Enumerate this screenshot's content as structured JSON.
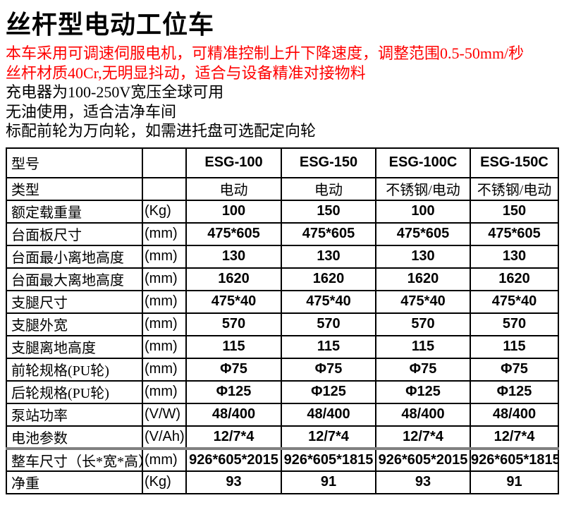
{
  "page": {
    "title": "丝杆型电动工位车",
    "highlight_color": "#ff0000",
    "text_color": "#000000",
    "highlight_lines": [
      "本车采用可调速伺服电机，可精准控制上升下降速度，调整范围0.5-50mm/秒",
      "丝杆材质40Cr,无明显抖动，适合与设备精准对接物料"
    ],
    "info_lines": [
      "充电器为100-250V宽压全球可用",
      "无油使用，适合洁净车间",
      "标配前轮为万向轮，如需进托盘可选配定向轮"
    ]
  },
  "spec_table": {
    "model_names": [
      "ESG-100",
      "ESG-150",
      "ESG-100C",
      "ESG-150C"
    ],
    "rows": [
      {
        "label": "型号",
        "unit": "",
        "values": [
          "ESG-100",
          "ESG-150",
          "ESG-100C",
          "ESG-150C"
        ],
        "is_header": true
      },
      {
        "label": "类型",
        "unit": "",
        "values": [
          "电动",
          "电动",
          "不锈钢/电动",
          "不锈钢/电动"
        ],
        "cjk": true
      },
      {
        "label": "额定载重量",
        "unit": "(Kg)",
        "values": [
          "100",
          "150",
          "100",
          "150"
        ]
      },
      {
        "label": "台面板尺寸",
        "unit": "(mm)",
        "values": [
          "475*605",
          "475*605",
          "475*605",
          "475*605"
        ]
      },
      {
        "label": "台面最小离地高度",
        "unit": "(mm)",
        "values": [
          "130",
          "130",
          "130",
          "130"
        ]
      },
      {
        "label": "台面最大离地高度",
        "unit": "(mm)",
        "values": [
          "1620",
          "1620",
          "1620",
          "1620"
        ]
      },
      {
        "label": "支腿尺寸",
        "unit": "(mm)",
        "values": [
          "475*40",
          "475*40",
          "475*40",
          "475*40"
        ]
      },
      {
        "label": "支腿外宽",
        "unit": "(mm)",
        "values": [
          "570",
          "570",
          "570",
          "570"
        ]
      },
      {
        "label": "支腿离地高度",
        "unit": "(mm)",
        "values": [
          "115",
          "115",
          "115",
          "115"
        ]
      },
      {
        "label": "前轮规格(PU轮)",
        "unit": "(mm)",
        "values": [
          "Φ75",
          "Φ75",
          "Φ75",
          "Φ75"
        ]
      },
      {
        "label": "后轮规格(PU轮)",
        "unit": "(mm)",
        "values": [
          "Φ125",
          "Φ125",
          "Φ125",
          "Φ125"
        ]
      },
      {
        "label": "泵站功率",
        "unit": "(V/W)",
        "values": [
          "48/400",
          "48/400",
          "48/400",
          "48/400"
        ]
      },
      {
        "label": "电池参数",
        "unit": "(V/Ah)",
        "values": [
          "12/7*4",
          "12/7*4",
          "12/7*4",
          "12/7*4"
        ]
      },
      {
        "label": "整车尺寸（长*宽*高）",
        "unit": "(mm)",
        "values": [
          "926*605*2015",
          "926*605*1815",
          "926*605*2015",
          "926*605*1815"
        ],
        "thick_top": true
      },
      {
        "label": "净重",
        "unit": "(Kg)",
        "values": [
          "93",
          "91",
          "93",
          "91"
        ]
      }
    ]
  }
}
